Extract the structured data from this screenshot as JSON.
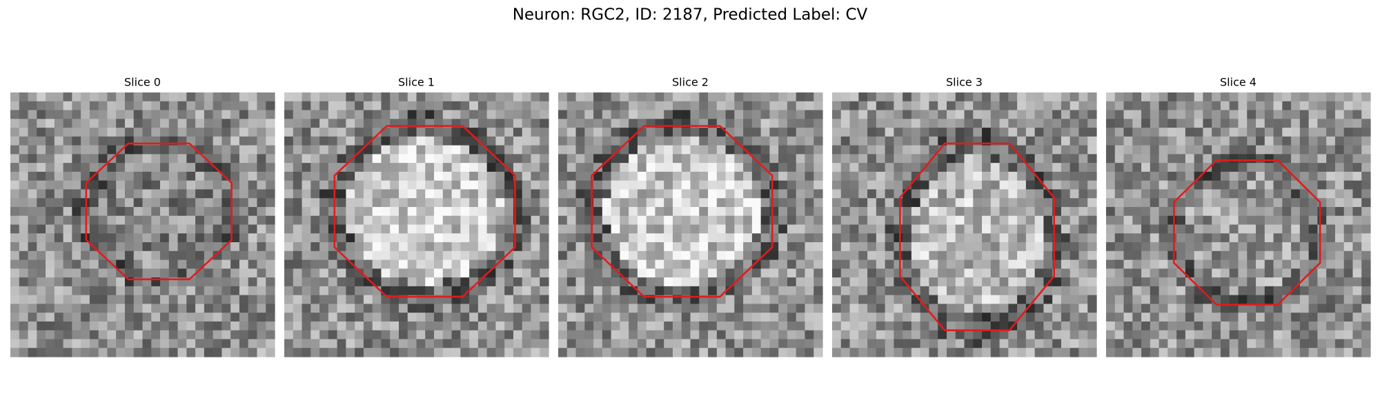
{
  "title": "Neuron: RGC2, ID: 2187, Predicted Label: CV",
  "panels": [
    {
      "title": "Slice 0"
    },
    {
      "title": "Slice 1"
    },
    {
      "title": "Slice 2"
    },
    {
      "title": "Slice 3"
    },
    {
      "title": "Slice 4"
    }
  ]
}
